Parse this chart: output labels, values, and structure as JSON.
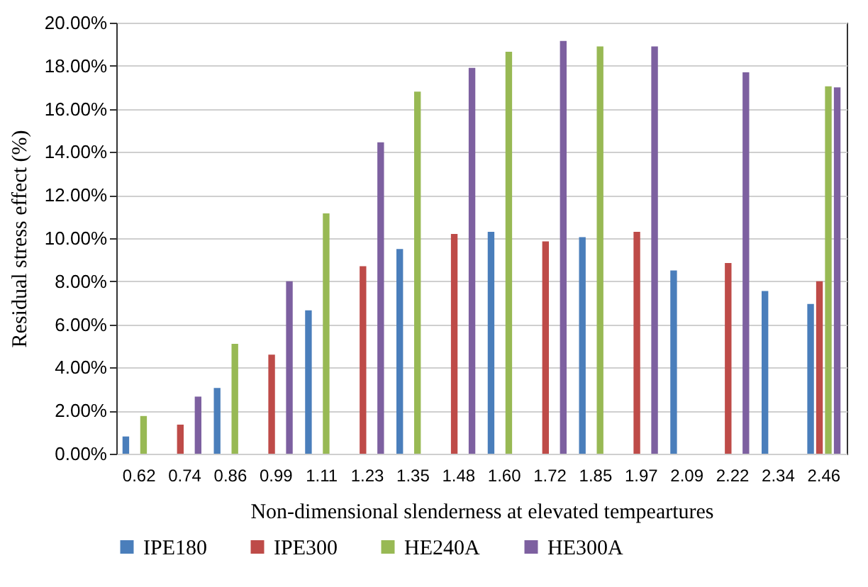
{
  "chart_data": {
    "type": "bar",
    "xlabel": "Non-dimensional slenderness at elevated tempeartures",
    "ylabel": "Residual stress effect (%)",
    "categories": [
      "0.62",
      "0.74",
      "0.86",
      "0.99",
      "1.11",
      "1.23",
      "1.35",
      "1.48",
      "1.60",
      "1.72",
      "1.85",
      "1.97",
      "2.09",
      "2.22",
      "2.34",
      "2.46"
    ],
    "series": [
      {
        "name": "IPE180",
        "color": "#4a7ebb",
        "values": [
          0.8,
          null,
          3.05,
          null,
          6.65,
          null,
          9.5,
          null,
          10.3,
          null,
          10.05,
          null,
          8.5,
          null,
          7.55,
          6.95
        ]
      },
      {
        "name": "IPE300",
        "color": "#be4b48",
        "values": [
          null,
          1.35,
          null,
          4.6,
          null,
          8.7,
          null,
          10.2,
          null,
          9.85,
          null,
          10.3,
          null,
          8.85,
          null,
          8.0
        ]
      },
      {
        "name": "HE240A",
        "color": "#98b954",
        "values": [
          1.75,
          null,
          5.1,
          null,
          11.15,
          null,
          16.8,
          null,
          18.65,
          null,
          18.9,
          null,
          null,
          null,
          null,
          17.05
        ]
      },
      {
        "name": "HE300A",
        "color": "#7d60a0",
        "values": [
          null,
          2.65,
          null,
          8.0,
          null,
          14.45,
          null,
          17.9,
          null,
          19.15,
          null,
          18.9,
          null,
          17.7,
          null,
          17.0
        ]
      }
    ],
    "ylim": [
      0,
      20
    ],
    "yticks": [
      {
        "value": 0,
        "label": "0.00%"
      },
      {
        "value": 2,
        "label": "2.00%"
      },
      {
        "value": 4,
        "label": "4.00%"
      },
      {
        "value": 6,
        "label": "6.00%"
      },
      {
        "value": 8,
        "label": "8.00%"
      },
      {
        "value": 10,
        "label": "10.00%"
      },
      {
        "value": 12,
        "label": "12.00%"
      },
      {
        "value": 14,
        "label": "14.00%"
      },
      {
        "value": 16,
        "label": "16.00%"
      },
      {
        "value": 18,
        "label": "18.00%"
      },
      {
        "value": 20,
        "label": "20.00%"
      }
    ],
    "grid": "y",
    "legend": "bottom"
  }
}
